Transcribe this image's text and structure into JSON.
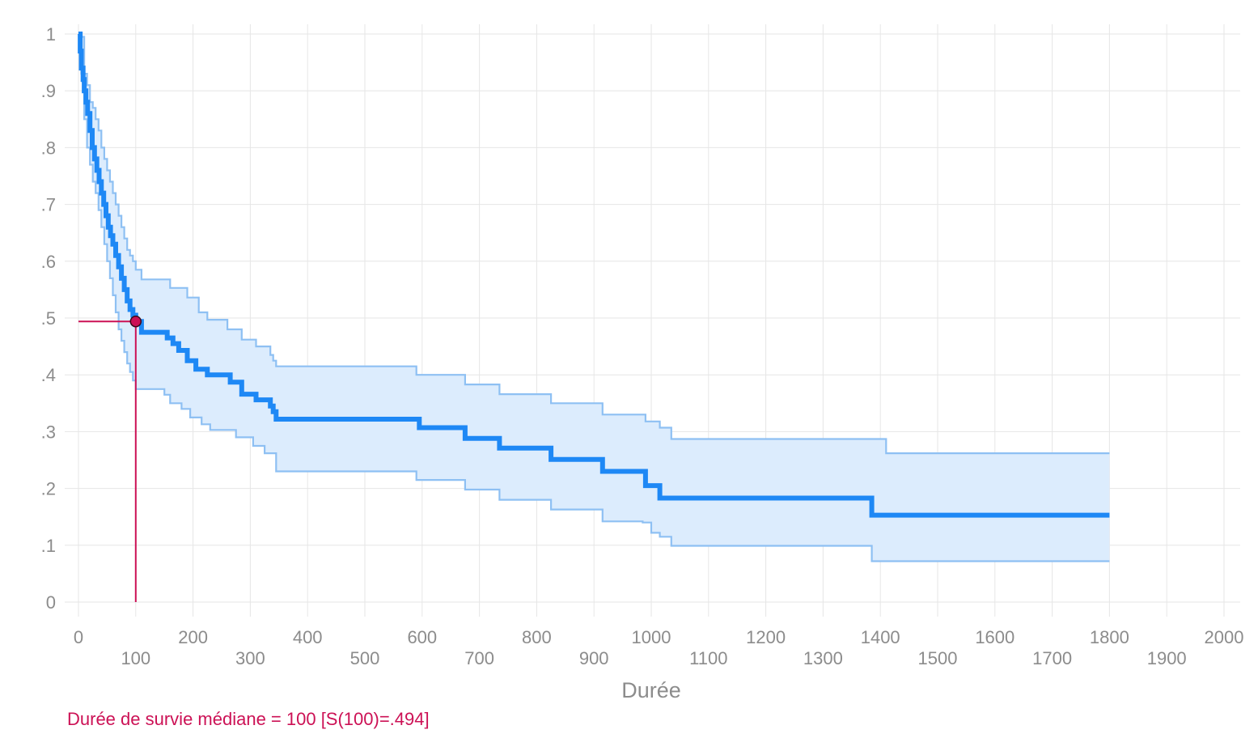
{
  "chart_data": {
    "type": "line",
    "subtype": "kaplan-meier-step",
    "xlabel": "Durée",
    "ylabel": "",
    "xlim": [
      0,
      2000
    ],
    "ylim": [
      0,
      1
    ],
    "x_ticks_row1": [
      "0",
      "200",
      "400",
      "600",
      "800",
      "1000",
      "1200",
      "1400",
      "1600",
      "1800",
      "2000"
    ],
    "x_ticks_row2": [
      "100",
      "300",
      "500",
      "700",
      "900",
      "1100",
      "1300",
      "1500",
      "1700",
      "1900"
    ],
    "y_ticks": [
      {
        "value": 0,
        "label": "0"
      },
      {
        "value": 0.1,
        "label": ".1"
      },
      {
        "value": 0.2,
        "label": ".2"
      },
      {
        "value": 0.3,
        "label": ".3"
      },
      {
        "value": 0.4,
        "label": ".4"
      },
      {
        "value": 0.5,
        "label": ".5"
      },
      {
        "value": 0.6,
        "label": ".6"
      },
      {
        "value": 0.7,
        "label": ".7"
      },
      {
        "value": 0.8,
        "label": ".8"
      },
      {
        "value": 0.9,
        "label": ".9"
      },
      {
        "value": 1,
        "label": "1"
      }
    ],
    "grid": true,
    "colors": {
      "survival": "#1e88f5",
      "band_fill": "#dcecfd",
      "band_edge": "#8ec0f3",
      "median": "#cc1155",
      "grid": "#e6e6e6",
      "tick_text": "#8c8c8c"
    },
    "survival": {
      "x": [
        0,
        3,
        5,
        8,
        10,
        13,
        16,
        20,
        24,
        28,
        32,
        36,
        40,
        44,
        48,
        52,
        56,
        60,
        65,
        70,
        75,
        80,
        85,
        90,
        95,
        100,
        110,
        155,
        165,
        175,
        190,
        205,
        225,
        265,
        285,
        310,
        335,
        340,
        345,
        595,
        675,
        735,
        825,
        915,
        990,
        1000,
        1015,
        1035,
        1385,
        1410,
        1800
      ],
      "y": [
        1.0,
        0.97,
        0.94,
        0.92,
        0.9,
        0.88,
        0.86,
        0.83,
        0.8,
        0.78,
        0.76,
        0.74,
        0.72,
        0.7,
        0.68,
        0.66,
        0.645,
        0.63,
        0.61,
        0.59,
        0.57,
        0.55,
        0.53,
        0.515,
        0.505,
        0.494,
        0.475,
        0.465,
        0.455,
        0.443,
        0.425,
        0.41,
        0.4,
        0.387,
        0.366,
        0.356,
        0.345,
        0.335,
        0.322,
        0.307,
        0.288,
        0.271,
        0.251,
        0.23,
        0.205,
        0.205,
        0.183,
        0.183,
        0.153,
        0.153,
        0.153
      ]
    },
    "ci_upper": {
      "x": [
        0,
        5,
        10,
        15,
        20,
        25,
        30,
        35,
        40,
        45,
        50,
        55,
        60,
        65,
        70,
        75,
        80,
        85,
        90,
        95,
        100,
        110,
        160,
        190,
        210,
        225,
        260,
        285,
        310,
        335,
        340,
        345,
        590,
        675,
        735,
        825,
        915,
        990,
        1000,
        1015,
        1035,
        1385,
        1410,
        1800
      ],
      "y": [
        1.0,
        0.995,
        0.93,
        0.91,
        0.88,
        0.87,
        0.85,
        0.83,
        0.8,
        0.78,
        0.76,
        0.74,
        0.72,
        0.7,
        0.68,
        0.66,
        0.64,
        0.62,
        0.61,
        0.6,
        0.585,
        0.568,
        0.553,
        0.536,
        0.51,
        0.497,
        0.48,
        0.462,
        0.45,
        0.435,
        0.425,
        0.415,
        0.4,
        0.383,
        0.366,
        0.35,
        0.33,
        0.318,
        0.318,
        0.307,
        0.287,
        0.287,
        0.262,
        0.262
      ]
    },
    "ci_lower": {
      "x": [
        0,
        5,
        10,
        15,
        20,
        25,
        30,
        35,
        40,
        45,
        50,
        55,
        60,
        65,
        70,
        75,
        80,
        85,
        90,
        95,
        100,
        110,
        150,
        160,
        180,
        195,
        215,
        230,
        275,
        305,
        325,
        345,
        590,
        675,
        735,
        825,
        915,
        985,
        1000,
        1015,
        1035,
        1385,
        1410,
        1800
      ],
      "y": [
        1.0,
        0.93,
        0.85,
        0.8,
        0.77,
        0.74,
        0.72,
        0.69,
        0.66,
        0.63,
        0.6,
        0.57,
        0.54,
        0.51,
        0.48,
        0.46,
        0.44,
        0.42,
        0.405,
        0.39,
        0.375,
        0.375,
        0.365,
        0.35,
        0.34,
        0.325,
        0.313,
        0.303,
        0.29,
        0.275,
        0.262,
        0.23,
        0.215,
        0.198,
        0.18,
        0.163,
        0.142,
        0.14,
        0.122,
        0.115,
        0.099,
        0.072,
        0.072,
        0.072
      ]
    },
    "median": {
      "x": 100,
      "y": 0.494,
      "label": "Durée de survie médiane = 100 [S(100)=.494]"
    }
  }
}
